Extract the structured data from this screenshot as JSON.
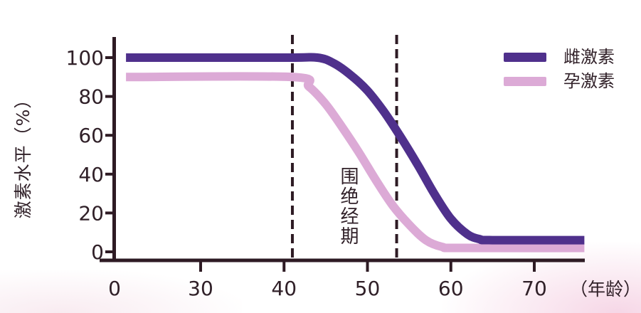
{
  "colors": {
    "estrogen": "#4f308c",
    "progesterone": "#dcaad6",
    "axis": "#2e1b24",
    "dashed": "#2e1b24",
    "text": "#302028"
  },
  "legend": {
    "items": [
      {
        "label": "雌激素",
        "color": "#4f308c"
      },
      {
        "label": "孕激素",
        "color": "#dcaad6"
      }
    ]
  },
  "annotation": {
    "label": "围绝经期"
  },
  "chart_data": {
    "type": "line",
    "title": "",
    "xlabel": "（年龄）",
    "ylabel": "激素水平（%）",
    "x_ticks": [
      0,
      30,
      40,
      50,
      60,
      70
    ],
    "y_ticks": [
      100,
      80,
      60,
      40,
      20,
      0
    ],
    "ylim": [
      0,
      105
    ],
    "grid": false,
    "legend_position": "top-right",
    "x_axis_note": "axis compressed between 0 and 30",
    "dashed_lines_x": [
      41,
      53.5
    ],
    "series": [
      {
        "name": "雌激素",
        "color": "#4f308c",
        "points": [
          [
            4,
            100
          ],
          [
            40,
            100
          ],
          [
            44,
            100
          ],
          [
            46,
            97
          ],
          [
            48,
            91
          ],
          [
            50,
            83
          ],
          [
            52,
            72
          ],
          [
            54,
            59
          ],
          [
            56,
            45
          ],
          [
            58,
            30
          ],
          [
            60,
            17
          ],
          [
            62,
            9
          ],
          [
            63.5,
            6.5
          ],
          [
            65,
            6
          ],
          [
            76,
            6
          ]
        ]
      },
      {
        "name": "孕激素",
        "color": "#dcaad6",
        "points": [
          [
            4,
            90
          ],
          [
            41,
            90
          ],
          [
            43,
            85
          ],
          [
            45,
            76
          ],
          [
            47,
            64
          ],
          [
            49,
            51
          ],
          [
            51,
            37
          ],
          [
            53,
            24
          ],
          [
            55,
            14
          ],
          [
            57,
            6
          ],
          [
            59,
            2.5
          ],
          [
            61,
            2
          ],
          [
            76,
            2
          ]
        ]
      }
    ]
  }
}
